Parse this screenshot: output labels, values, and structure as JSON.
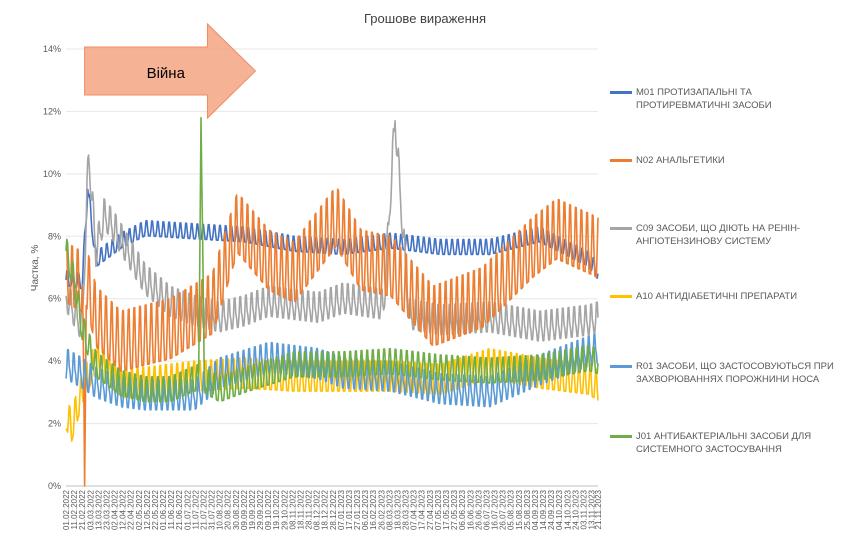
{
  "chart_data": {
    "type": "line",
    "title": "Грошове вираження",
    "ylabel": "Частка, %",
    "xlabel": "",
    "ylim": [
      0,
      14
    ],
    "y_ticks": [
      "0%",
      "2%",
      "4%",
      "6%",
      "8%",
      "10%",
      "12%",
      "14%"
    ],
    "grid": "horizontal",
    "legend_position": "right",
    "x_ticks": [
      "01.02.2022",
      "11.02.2022",
      "21.02.2022",
      "03.03.2022",
      "13.03.2022",
      "23.03.2022",
      "02.04.2022",
      "12.04.2022",
      "22.04.2022",
      "02.05.2022",
      "12.05.2022",
      "22.05.2022",
      "01.06.2022",
      "11.06.2022",
      "21.06.2022",
      "01.07.2022",
      "11.07.2022",
      "21.07.2022",
      "31.07.2022",
      "10.08.2022",
      "20.08.2022",
      "30.08.2022",
      "09.09.2022",
      "19.09.2022",
      "29.09.2022",
      "09.10.2022",
      "19.10.2022",
      "29.10.2022",
      "08.11.2022",
      "18.11.2022",
      "28.11.2022",
      "08.12.2022",
      "18.12.2022",
      "28.12.2022",
      "07.01.2023",
      "17.01.2023",
      "27.01.2023",
      "06.02.2023",
      "16.02.2023",
      "26.02.2023",
      "08.03.2023",
      "18.03.2023",
      "28.03.2023",
      "07.04.2023",
      "17.04.2023",
      "27.04.2023",
      "07.05.2023",
      "17.05.2023",
      "27.05.2023",
      "06.06.2023",
      "16.06.2023",
      "26.06.2023",
      "06.07.2023",
      "16.07.2023",
      "26.07.2023",
      "05.08.2023",
      "15.08.2023",
      "25.08.2023",
      "04.09.2023",
      "14.09.2023",
      "24.09.2023",
      "04.10.2023",
      "14.10.2023",
      "24.10.2023",
      "03.11.2023",
      "13.11.2023",
      "21.11.2023"
    ],
    "annotation": {
      "text": "Війна",
      "x_start": "24.02.2022",
      "x_end": "21.07.2022"
    },
    "series": [
      {
        "name": "M01 ПРОТИЗАПАЛЬНІ ТА ПРОТИРЕВМАТИЧНІ ЗАСОБИ",
        "color": "#4472C4",
        "x": [
          "01.02.2022",
          "21.02.2022",
          "28.02.2022",
          "10.03.2022",
          "10.04.2022",
          "10.05.2022",
          "10.07.2022",
          "10.09.2022",
          "10.11.2022",
          "10.01.2023",
          "10.03.2023",
          "10.05.2023",
          "10.07.2023",
          "10.09.2023",
          "10.11.2023",
          "21.11.2023"
        ],
        "values": [
          6.6,
          6.5,
          9.5,
          7.2,
          7.8,
          8.2,
          8.1,
          8.0,
          7.7,
          7.6,
          7.8,
          7.6,
          7.6,
          8.0,
          7.2,
          6.8
        ]
      },
      {
        "name": "N02 АНАЛЬГЕТИКИ",
        "color": "#ED7D31",
        "x": [
          "01.02.2022",
          "21.02.2022",
          "24.02.2022",
          "26.02.2022",
          "10.03.2022",
          "10.04.2022",
          "10.06.2022",
          "01.08.2022",
          "01.09.2022",
          "10.10.2022",
          "10.11.2022",
          "01.01.2023",
          "01.02.2023",
          "10.03.2023",
          "01.05.2023",
          "01.07.2023",
          "01.09.2023",
          "01.10.2023",
          "21.11.2023"
        ],
        "values": [
          6.6,
          6.3,
          0,
          6.5,
          5.2,
          4.4,
          4.8,
          5.6,
          8.2,
          7.0,
          6.6,
          8.4,
          7.0,
          6.8,
          5.2,
          5.8,
          7.4,
          8.0,
          7.4
        ]
      },
      {
        "name": "C09 ЗАСОБИ, ЩО ДІЮТЬ НА РЕНІН-АНГІОТЕНЗИНОВУ СИСТЕМУ",
        "color": "#A5A5A5",
        "x": [
          "01.02.2022",
          "21.02.2022",
          "01.03.2022",
          "10.03.2022",
          "20.03.2022",
          "01.04.2022",
          "10.05.2022",
          "10.06.2022",
          "10.07.2022",
          "10.08.2022",
          "10.09.2022",
          "10.10.2022",
          "10.12.2022",
          "10.01.2023",
          "01.03.2023",
          "15.03.2023",
          "01.04.2023",
          "10.05.2023",
          "10.07.2023",
          "10.09.2023",
          "10.11.2023",
          "21.11.2023"
        ],
        "values": [
          6.0,
          5.0,
          10.6,
          7.4,
          8.6,
          8.2,
          6.5,
          5.8,
          5.5,
          5.3,
          5.5,
          5.8,
          5.6,
          5.9,
          5.7,
          11.7,
          5.4,
          5.2,
          5.3,
          5.0,
          5.2,
          5.3
        ]
      },
      {
        "name": "A10 АНТИДІАБЕТИЧНІ ПРЕПАРАТИ",
        "color": "#FFC000",
        "x": [
          "01.02.2022",
          "08.02.2022",
          "21.02.2022",
          "10.03.2022",
          "10.04.2022",
          "10.05.2022",
          "10.07.2022",
          "10.09.2022",
          "10.11.2022",
          "10.01.2023",
          "10.03.2023",
          "10.05.2023",
          "10.07.2023",
          "10.09.2023",
          "10.11.2023",
          "21.11.2023"
        ],
        "values": [
          2.2,
          1.8,
          3.0,
          4.0,
          3.2,
          3.2,
          3.4,
          3.5,
          3.4,
          3.4,
          3.4,
          3.3,
          3.8,
          3.5,
          3.3,
          3.1
        ]
      },
      {
        "name": "R01 ЗАСОБИ, ЩО ЗАСТОСОВУЮТЬСЯ ПРИ ЗАХВОРЮВАННЯХ ПОРОЖНИНИ НОСА",
        "color": "#5B9BD5",
        "x": [
          "01.02.2022",
          "21.02.2022",
          "10.03.2022",
          "10.04.2022",
          "10.05.2022",
          "10.07.2022",
          "10.08.2022",
          "10.10.2022",
          "10.12.2022",
          "10.01.2023",
          "10.03.2023",
          "10.05.2023",
          "10.07.2023",
          "10.09.2023",
          "10.11.2023",
          "21.11.2023"
        ],
        "values": [
          3.8,
          3.5,
          3.2,
          2.9,
          2.8,
          2.8,
          3.5,
          4.0,
          3.8,
          3.5,
          3.4,
          3.0,
          2.9,
          3.6,
          4.2,
          4.3
        ]
      },
      {
        "name": "J01 АНТИБАКТЕРІАЛЬНІ ЗАСОБИ ДЛЯ СИСТЕМНОГО ЗАСТОСУВАННЯ",
        "color": "#70AD47",
        "x": [
          "01.02.2022",
          "11.02.2022",
          "21.02.2022",
          "10.03.2022",
          "10.04.2022",
          "10.05.2022",
          "10.06.2022",
          "15.07.2022",
          "18.07.2022",
          "22.07.2022",
          "10.08.2022",
          "10.09.2022",
          "10.11.2022",
          "10.01.2023",
          "10.03.2023",
          "10.05.2023",
          "10.07.2023",
          "10.09.2023",
          "10.11.2023",
          "21.11.2023"
        ],
        "values": [
          7.5,
          6.5,
          5.0,
          3.8,
          3.2,
          3.0,
          3.0,
          3.4,
          11.8,
          3.3,
          3.0,
          3.3,
          3.8,
          3.8,
          3.9,
          3.7,
          3.6,
          3.7,
          4.0,
          3.9
        ]
      }
    ]
  }
}
